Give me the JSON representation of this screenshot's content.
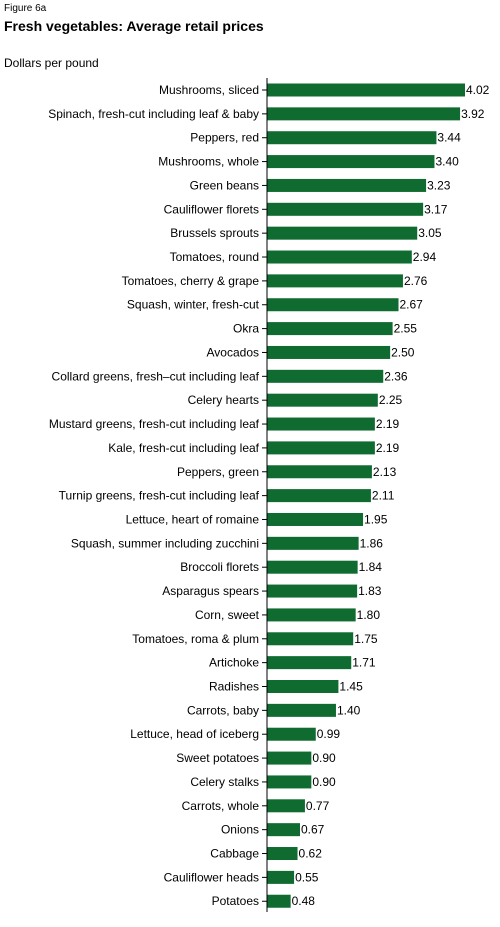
{
  "figure_label": "Figure 6a",
  "title": "Fresh vegetables: Average retail prices",
  "unit_label": "Dollars per pound",
  "colors": {
    "bar": "#0f6b2f",
    "axis": "#000000"
  },
  "chart_data": {
    "type": "bar",
    "orientation": "horizontal",
    "title": "Fresh vegetables: Average retail prices",
    "ylabel": "Dollars per pound",
    "xlim": [
      0,
      4.02
    ],
    "grid": false,
    "categories": [
      "Mushrooms, sliced",
      "Spinach, fresh-cut including leaf & baby",
      "Peppers, red",
      "Mushrooms, whole",
      "Green beans",
      "Cauliflower florets",
      "Brussels sprouts",
      "Tomatoes, round",
      "Tomatoes, cherry & grape",
      "Squash, winter, fresh-cut",
      "Okra",
      "Avocados",
      "Collard greens, fresh–cut including leaf",
      "Celery hearts",
      "Mustard greens, fresh-cut including leaf",
      "Kale, fresh-cut including leaf",
      "Peppers, green",
      "Turnip greens, fresh-cut including leaf",
      "Lettuce, heart of romaine",
      "Squash, summer including zucchini",
      "Broccoli florets",
      "Asparagus spears",
      "Corn, sweet",
      "Tomatoes, roma & plum",
      "Artichoke",
      "Radishes",
      "Carrots, baby",
      "Lettuce, head of iceberg",
      "Sweet potatoes",
      "Celery stalks",
      "Carrots, whole",
      "Onions",
      "Cabbage",
      "Cauliflower heads",
      "Potatoes"
    ],
    "values": [
      4.02,
      3.92,
      3.44,
      3.4,
      3.23,
      3.17,
      3.05,
      2.94,
      2.76,
      2.67,
      2.55,
      2.5,
      2.36,
      2.25,
      2.19,
      2.19,
      2.13,
      2.11,
      1.95,
      1.86,
      1.84,
      1.83,
      1.8,
      1.75,
      1.71,
      1.45,
      1.4,
      0.99,
      0.9,
      0.9,
      0.77,
      0.67,
      0.62,
      0.55,
      0.48
    ],
    "value_labels": [
      "4.02",
      "3.92",
      "3.44",
      "3.40",
      "3.23",
      "3.17",
      "3.05",
      "2.94",
      "2.76",
      "2.67",
      "2.55",
      "2.50",
      "2.36",
      "2.25",
      "2.19",
      "2.19",
      "2.13",
      "2.11",
      "1.95",
      "1.86",
      "1.84",
      "1.83",
      "1.80",
      "1.75",
      "1.71",
      "1.45",
      "1.40",
      "0.99",
      "0.90",
      "0.90",
      "0.77",
      "0.67",
      "0.62",
      "0.55",
      "0.48"
    ]
  }
}
